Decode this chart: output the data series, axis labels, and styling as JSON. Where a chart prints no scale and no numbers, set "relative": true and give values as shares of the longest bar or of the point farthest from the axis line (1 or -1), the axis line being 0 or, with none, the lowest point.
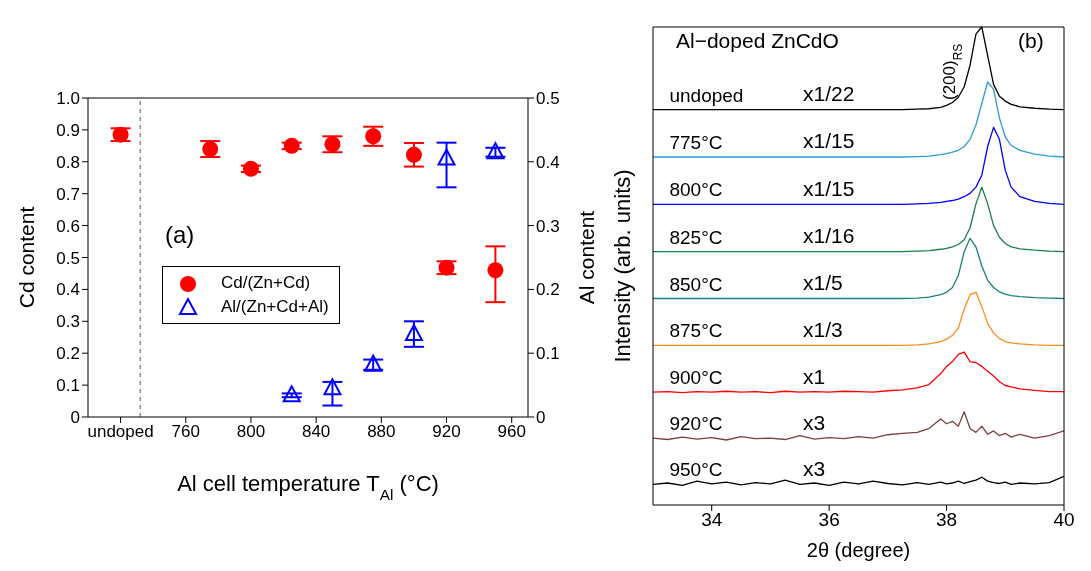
{
  "chart_data": [
    {
      "type": "scatter",
      "xlabel": "Al cell temperature T$_{Al}$ (°C)",
      "ylabel": "Cd content",
      "y2label": "Al content",
      "annotations": [
        "(a)"
      ],
      "xlim": [
        700,
        970
      ],
      "xticks": [
        {
          "value": 720,
          "label": "undoped"
        },
        760,
        800,
        840,
        880,
        920,
        960
      ],
      "ylim": [
        0,
        1
      ],
      "yticks": [
        0,
        0.1,
        0.2,
        0.3,
        0.4,
        0.5,
        0.6,
        0.7,
        0.8,
        0.9,
        {
          "value": 1,
          "label": "1.0"
        }
      ],
      "y2lim": [
        0,
        0.5
      ],
      "y2ticks": [
        0,
        0.1,
        0.2,
        0.3,
        0.4,
        0.5
      ],
      "ref_lines": [
        {
          "axis": "x",
          "value": 732,
          "line_style": "dashed",
          "color": "#555555"
        }
      ],
      "grid": false,
      "legend": "center left",
      "series": [
        {
          "name": "Cd/(Zn+Cd)",
          "color": "#ff0000",
          "marker": "circle",
          "x": [
            720,
            775,
            800,
            825,
            850,
            875,
            900,
            920,
            950
          ],
          "values": [
            0.885,
            0.84,
            0.778,
            0.85,
            0.855,
            0.88,
            0.822,
            0.468,
            0.46
          ],
          "errors": [
            0.02,
            0.025,
            0.01,
            0.01,
            0.025,
            0.03,
            0.037,
            0.02,
            [
              0.36,
              0.535
            ]
          ]
        },
        {
          "name": "Al/(Zn+Cd+Al)",
          "color": "#0000ff",
          "marker": "triangle",
          "axis": "y2",
          "x": [
            825,
            850,
            875,
            900,
            920,
            950
          ],
          "values": [
            0.034,
            0.045,
            0.082,
            0.13,
            0.405,
            0.415
          ],
          "errors": [
            0.003,
            [
              0.018,
              0.055
            ],
            0.008,
            0.02,
            [
              0.36,
              0.43
            ],
            0.007
          ]
        }
      ]
    },
    {
      "type": "line",
      "relative": true,
      "xlabel": "2θ (degree)",
      "ylabel": "Intensity (arb. units)",
      "annotations": [
        "Al−doped ZnCdO",
        "(200)$_{RS}$",
        "(b)",
        "x1/22",
        "x1/15",
        "x1/15",
        "x1/16",
        "x1/5",
        "x1/3",
        "x1",
        "x3",
        "x3"
      ],
      "xlim": [
        33,
        40
      ],
      "xticks": [
        34,
        36,
        38,
        40
      ],
      "grid": false,
      "marker": "none",
      "x": [
        33,
        33.25,
        33.5,
        33.75,
        34,
        34.25,
        34.5,
        34.75,
        35,
        35.25,
        35.5,
        35.75,
        36,
        36.25,
        36.5,
        36.75,
        37,
        37.25,
        37.5,
        37.7,
        37.9,
        38.0,
        38.1,
        38.2,
        38.3,
        38.4,
        38.5,
        38.6,
        38.7,
        38.8,
        38.9,
        39.0,
        39.1,
        39.25,
        39.5,
        39.75,
        40
      ],
      "series": [
        {
          "name": "undoped",
          "color": "#000000",
          "values": [
            0.827,
            0.827,
            0.827,
            0.827,
            0.827,
            0.827,
            0.827,
            0.827,
            0.827,
            0.827,
            0.827,
            0.827,
            0.827,
            0.827,
            0.827,
            0.827,
            0.827,
            0.827,
            0.828,
            0.829,
            0.832,
            0.836,
            0.842,
            0.853,
            0.875,
            0.92,
            0.985,
            1,
            0.94,
            0.88,
            0.855,
            0.845,
            0.838,
            0.833,
            0.83,
            0.828,
            0.827
          ]
        },
        {
          "name": "775°C",
          "color": "#2e9bd6",
          "values": [
            0.728,
            0.728,
            0.728,
            0.728,
            0.728,
            0.728,
            0.728,
            0.728,
            0.728,
            0.728,
            0.728,
            0.728,
            0.728,
            0.728,
            0.728,
            0.728,
            0.728,
            0.728,
            0.729,
            0.73,
            0.733,
            0.735,
            0.738,
            0.742,
            0.75,
            0.765,
            0.795,
            0.84,
            0.885,
            0.87,
            0.81,
            0.77,
            0.752,
            0.742,
            0.734,
            0.73,
            0.728
          ]
        },
        {
          "name": "800°C",
          "color": "#0000ff",
          "values": [
            0.629,
            0.629,
            0.629,
            0.629,
            0.629,
            0.629,
            0.629,
            0.629,
            0.629,
            0.629,
            0.629,
            0.629,
            0.629,
            0.629,
            0.629,
            0.629,
            0.629,
            0.629,
            0.63,
            0.631,
            0.633,
            0.635,
            0.637,
            0.64,
            0.645,
            0.652,
            0.665,
            0.69,
            0.75,
            0.79,
            0.765,
            0.7,
            0.665,
            0.645,
            0.635,
            0.631,
            0.629
          ]
        },
        {
          "name": "825°C",
          "color": "#1a7f4a",
          "values": [
            0.53,
            0.53,
            0.53,
            0.53,
            0.53,
            0.53,
            0.53,
            0.53,
            0.53,
            0.53,
            0.53,
            0.53,
            0.53,
            0.53,
            0.53,
            0.53,
            0.53,
            0.53,
            0.531,
            0.532,
            0.535,
            0.537,
            0.54,
            0.545,
            0.555,
            0.58,
            0.63,
            0.665,
            0.63,
            0.585,
            0.56,
            0.547,
            0.54,
            0.536,
            0.533,
            0.531,
            0.53
          ]
        },
        {
          "name": "850°C",
          "color": "#1a7f7f",
          "values": [
            0.432,
            0.432,
            0.432,
            0.432,
            0.432,
            0.432,
            0.432,
            0.432,
            0.432,
            0.432,
            0.432,
            0.432,
            0.432,
            0.432,
            0.432,
            0.432,
            0.432,
            0.432,
            0.433,
            0.435,
            0.44,
            0.445,
            0.455,
            0.48,
            0.53,
            0.558,
            0.54,
            0.5,
            0.47,
            0.455,
            0.446,
            0.441,
            0.438,
            0.436,
            0.434,
            0.433,
            0.432
          ]
        },
        {
          "name": "875°C",
          "color": "#ff8c1a",
          "values": [
            0.334,
            0.334,
            0.334,
            0.334,
            0.334,
            0.334,
            0.334,
            0.334,
            0.334,
            0.334,
            0.334,
            0.334,
            0.334,
            0.334,
            0.334,
            0.334,
            0.334,
            0.334,
            0.335,
            0.337,
            0.342,
            0.347,
            0.355,
            0.37,
            0.41,
            0.44,
            0.445,
            0.415,
            0.38,
            0.36,
            0.348,
            0.342,
            0.339,
            0.337,
            0.335,
            0.334,
            0.334
          ]
        },
        {
          "name": "900°C",
          "color": "#ff0000",
          "values": [
            0.236,
            0.237,
            0.235,
            0.237,
            0.236,
            0.238,
            0.236,
            0.237,
            0.235,
            0.238,
            0.236,
            0.237,
            0.236,
            0.238,
            0.237,
            0.236,
            0.239,
            0.241,
            0.245,
            0.252,
            0.275,
            0.29,
            0.3,
            0.315,
            0.32,
            0.3,
            0.298,
            0.29,
            0.28,
            0.27,
            0.258,
            0.25,
            0.247,
            0.243,
            0.24,
            0.237,
            0.237
          ]
        },
        {
          "name": "920°C",
          "color": "#7f3f3f",
          "values": [
            0.14,
            0.137,
            0.142,
            0.138,
            0.141,
            0.136,
            0.143,
            0.139,
            0.14,
            0.137,
            0.145,
            0.138,
            0.141,
            0.139,
            0.143,
            0.14,
            0.147,
            0.15,
            0.152,
            0.16,
            0.18,
            0.17,
            0.175,
            0.165,
            0.195,
            0.16,
            0.152,
            0.165,
            0.148,
            0.155,
            0.145,
            0.15,
            0.142,
            0.148,
            0.14,
            0.145,
            0.155
          ]
        },
        {
          "name": "950°C",
          "color": "#000000",
          "values": [
            0.043,
            0.046,
            0.041,
            0.05,
            0.044,
            0.048,
            0.042,
            0.047,
            0.044,
            0.052,
            0.043,
            0.046,
            0.041,
            0.048,
            0.044,
            0.05,
            0.045,
            0.042,
            0.047,
            0.043,
            0.048,
            0.044,
            0.046,
            0.05,
            0.045,
            0.049,
            0.052,
            0.058,
            0.05,
            0.047,
            0.045,
            0.048,
            0.043,
            0.046,
            0.044,
            0.047,
            0.06
          ]
        }
      ]
    }
  ]
}
